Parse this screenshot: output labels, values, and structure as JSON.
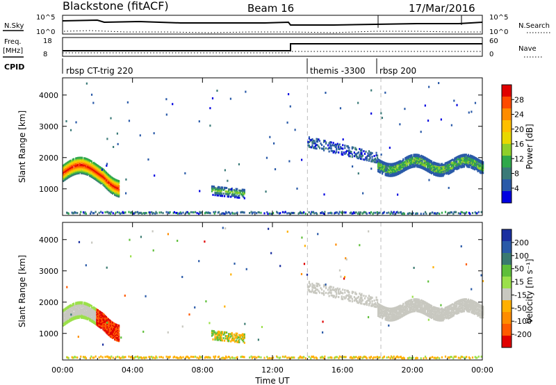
{
  "header": {
    "station": "Blackstone (fitACF)",
    "beam": "Beam 16",
    "date": "17/Mar/2016"
  },
  "summary": {
    "nsky_label": "N.Sky",
    "nsky_ticks": [
      "10^5",
      "10^0"
    ],
    "nsearch_label": "N.Search",
    "nsearch_ticks": [
      "10^5",
      "10^0"
    ],
    "freq_label_1": "Freq.",
    "freq_label_2": "[MHz]",
    "freq_ticks": [
      "18",
      "8"
    ],
    "nave_label": "Nave",
    "nave_ticks": [
      "60",
      "0"
    ],
    "cpid_label": "CPID",
    "cpid_segments": [
      {
        "label": "rbsp CT-trig 220",
        "start_hour": 0
      },
      {
        "label": "themis -3300",
        "start_hour": 14
      },
      {
        "label": "rbsp 200",
        "start_hour": 18.2
      }
    ]
  },
  "chart_data": [
    {
      "type": "heatmap",
      "name": "power",
      "xlabel": "",
      "ylabel": "Slant Range [km]",
      "xlim": [
        0,
        24
      ],
      "ylim": [
        150,
        4550
      ],
      "yticks": [
        1000,
        2000,
        3000,
        4000
      ],
      "xticks_hours": [
        0,
        4,
        8,
        12,
        16,
        20,
        24
      ],
      "colorbar": {
        "label": "Power [dB]",
        "ticks": [
          "28",
          "24",
          "20",
          "16",
          "12",
          "8",
          "4"
        ],
        "colors": [
          "#e00000",
          "#ff4a00",
          "#ff8c00",
          "#ffbf00",
          "#e8d800",
          "#8fcf2a",
          "#2fa84a",
          "#3a7a78",
          "#2a5aa8",
          "#0000e0"
        ]
      },
      "features": [
        {
          "desc": "echo band",
          "t_start": 0.0,
          "t_end": 3.2,
          "range_start": 1300,
          "range_end": 1900,
          "intensity": "high"
        },
        {
          "desc": "patch",
          "t_start": 8.5,
          "t_end": 10.4,
          "range_start": 800,
          "range_end": 1150,
          "intensity": "medium"
        },
        {
          "desc": "patch",
          "t_start": 14.0,
          "t_end": 18.0,
          "range_start": 1800,
          "range_end": 2700,
          "intensity": "low"
        },
        {
          "desc": "wavy band",
          "t_start": 18.0,
          "t_end": 24.0,
          "range_start": 1500,
          "range_end": 2000,
          "intensity": "medium"
        },
        {
          "desc": "ground scatter near range",
          "t_start": 0.0,
          "t_end": 24.0,
          "range_start": 180,
          "range_end": 260,
          "intensity": "low"
        }
      ]
    },
    {
      "type": "heatmap",
      "name": "velocity",
      "xlabel": "Time UT",
      "ylabel": "Slant Range [km]",
      "xlim": [
        0,
        24
      ],
      "ylim": [
        150,
        4550
      ],
      "yticks": [
        1000,
        2000,
        3000,
        4000
      ],
      "xticks": [
        "00:00",
        "04:00",
        "08:00",
        "12:00",
        "16:00",
        "20:00",
        "00:00"
      ],
      "colorbar": {
        "label": "Velocity [m s⁻¹]",
        "ticks": [
          "200",
          "100",
          "50",
          "15",
          "-15",
          "-50",
          "-100",
          "-200"
        ],
        "colors": [
          "#1a2fa0",
          "#2a5aa8",
          "#3a7a70",
          "#5fbf3a",
          "#9be04a",
          "#c8c8c0",
          "#ffb000",
          "#ff8c00",
          "#ff5a00",
          "#e00000"
        ]
      }
    }
  ]
}
